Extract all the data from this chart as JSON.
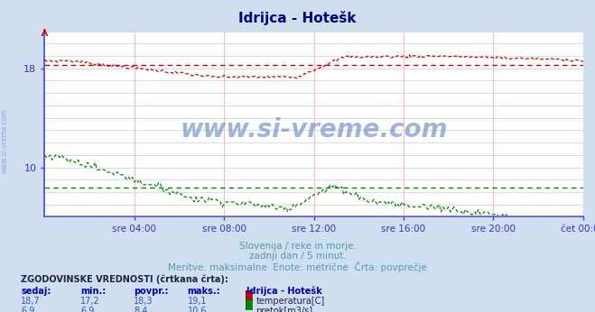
{
  "title": "Idrijca - Hotešk",
  "bg_color": "#d0dff0",
  "plot_bg_color": "#ffffff",
  "grid_color_h": "#ccccdd",
  "grid_color_v": "#ffbbbb",
  "x_min": 0,
  "x_max": 288,
  "y_min": 6,
  "y_max": 21,
  "temp_avg": 18.3,
  "flow_avg": 8.4,
  "temp_color": "#cc0000",
  "flow_color": "#008800",
  "axis_color": "#4444cc",
  "tick_label_color": "#3333bb",
  "title_color": "#000088",
  "text_color": "#5599aa",
  "ytick_vals": [
    10,
    18
  ],
  "ytick_labels": [
    "10",
    "18"
  ],
  "xtick_labels": [
    "sre 04:00",
    "sre 08:00",
    "sre 12:00",
    "sre 16:00",
    "sre 20:00",
    "čet 00:00"
  ],
  "xtick_positions": [
    48,
    96,
    144,
    192,
    240,
    288
  ],
  "subtitle1": "Slovenija / reke in morje.",
  "subtitle2": "zadnji dan / 5 minut.",
  "subtitle3": "Meritve: maksimalne  Enote: metrične  Črta: povprečje",
  "legend_title": "ZGODOVINSKE VREDNOSTI (črtkana črta):",
  "legend_headers": [
    "sedaj:",
    "min.:",
    "povpr.:",
    "maks.:",
    "Idrijca - Hotešk"
  ],
  "temp_values": [
    "18,7",
    "17,2",
    "18,3",
    "19,1"
  ],
  "flow_values": [
    "6,9",
    "6,9",
    "8,4",
    "10,6"
  ],
  "temp_label": "temperatura[C]",
  "flow_label": "pretok[m3/s]",
  "watermark": "www.si-vreme.com",
  "watermark_color": "#5577bb",
  "side_watermark_color": "#8899cc"
}
